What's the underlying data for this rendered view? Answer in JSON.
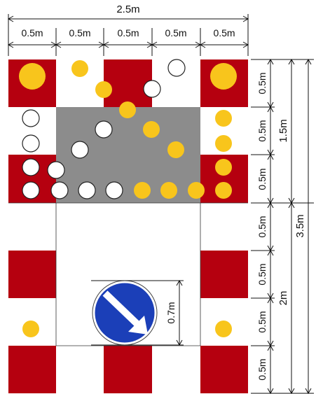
{
  "dimensions": {
    "total_width": "2.5m",
    "column_widths": [
      "0.5m",
      "0.5m",
      "0.5m",
      "0.5m",
      "0.5m"
    ],
    "row_heights": [
      "0.5m",
      "0.5m",
      "0.5m",
      "0.5m",
      "0.5m",
      "0.5m",
      "0.5m"
    ],
    "upper_section": "1.5m",
    "lower_section": "2m",
    "total_height": "3.5m",
    "sign_height": "0.7m"
  },
  "colors": {
    "red": "#b5000f",
    "white": "#ffffff",
    "grey": "#8c8c8c",
    "yellow": "#f8c51c",
    "sign_blue": "#1b3fb8",
    "line": "#111111"
  },
  "sign": {
    "type": "keep-right-arrow-sign"
  }
}
